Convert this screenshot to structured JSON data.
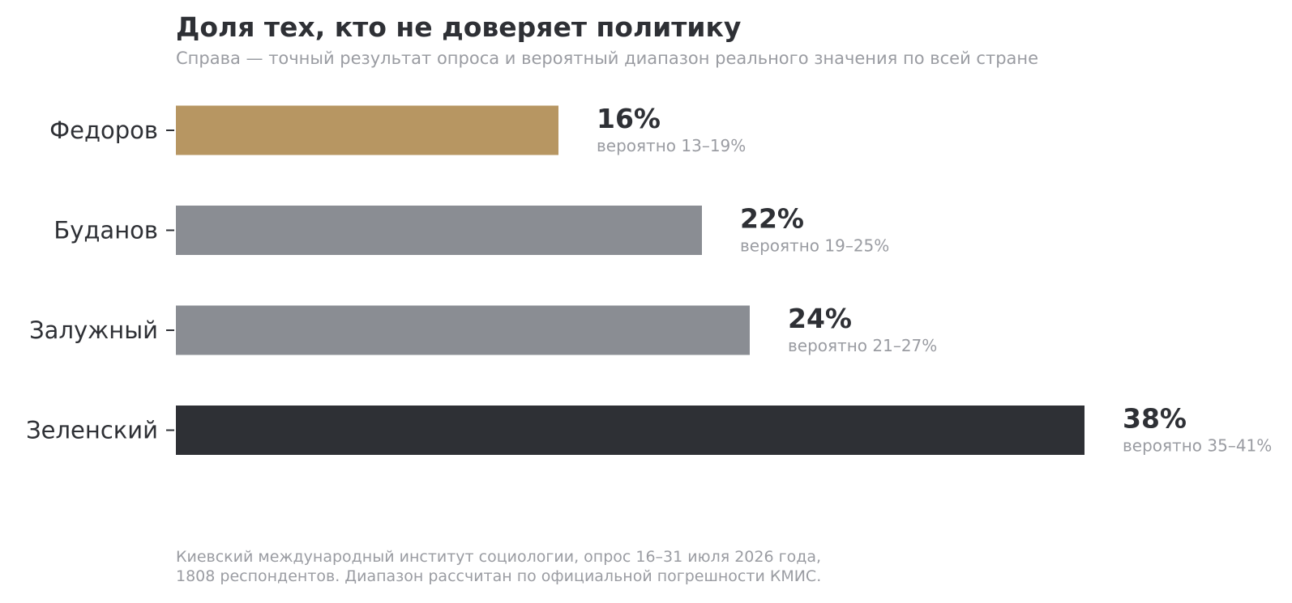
{
  "title": "Доля тех, кто не доверяет политику",
  "subtitle": "Справа — точный результат опроса и вероятный диапазон реального значения по всей стране",
  "note": {
    "line1": "Киевский международный институт социологии, опрос 16–31 июля 2026 года,",
    "line2": "1808 респондентов. Диапазон рассчитан по официальной погрешности КМИС."
  },
  "colors": {
    "highlight": "#b79662",
    "neutral": "#8a8d93",
    "dark": "#2e3035",
    "muted": "#9a9ca2"
  },
  "chart_data": {
    "type": "bar",
    "orientation": "horizontal",
    "categories": [
      "Федоров",
      "Буданов",
      "Залужный",
      "Зеленский"
    ],
    "values": [
      16,
      22,
      24,
      38
    ],
    "value_labels": [
      "16%",
      "22%",
      "24%",
      "38%"
    ],
    "range_labels": [
      "вероятно 13–19%",
      "вероятно 19–25%",
      "вероятно 21–27%",
      "вероятно 35–41%"
    ],
    "ranges": [
      [
        13,
        19
      ],
      [
        19,
        25
      ],
      [
        21,
        27
      ],
      [
        35,
        41
      ]
    ],
    "bar_colors": [
      "#b79662",
      "#8a8d93",
      "#8a8d93",
      "#2e3035"
    ],
    "xlim": [
      0,
      38
    ],
    "grid": false,
    "legend": "none"
  }
}
